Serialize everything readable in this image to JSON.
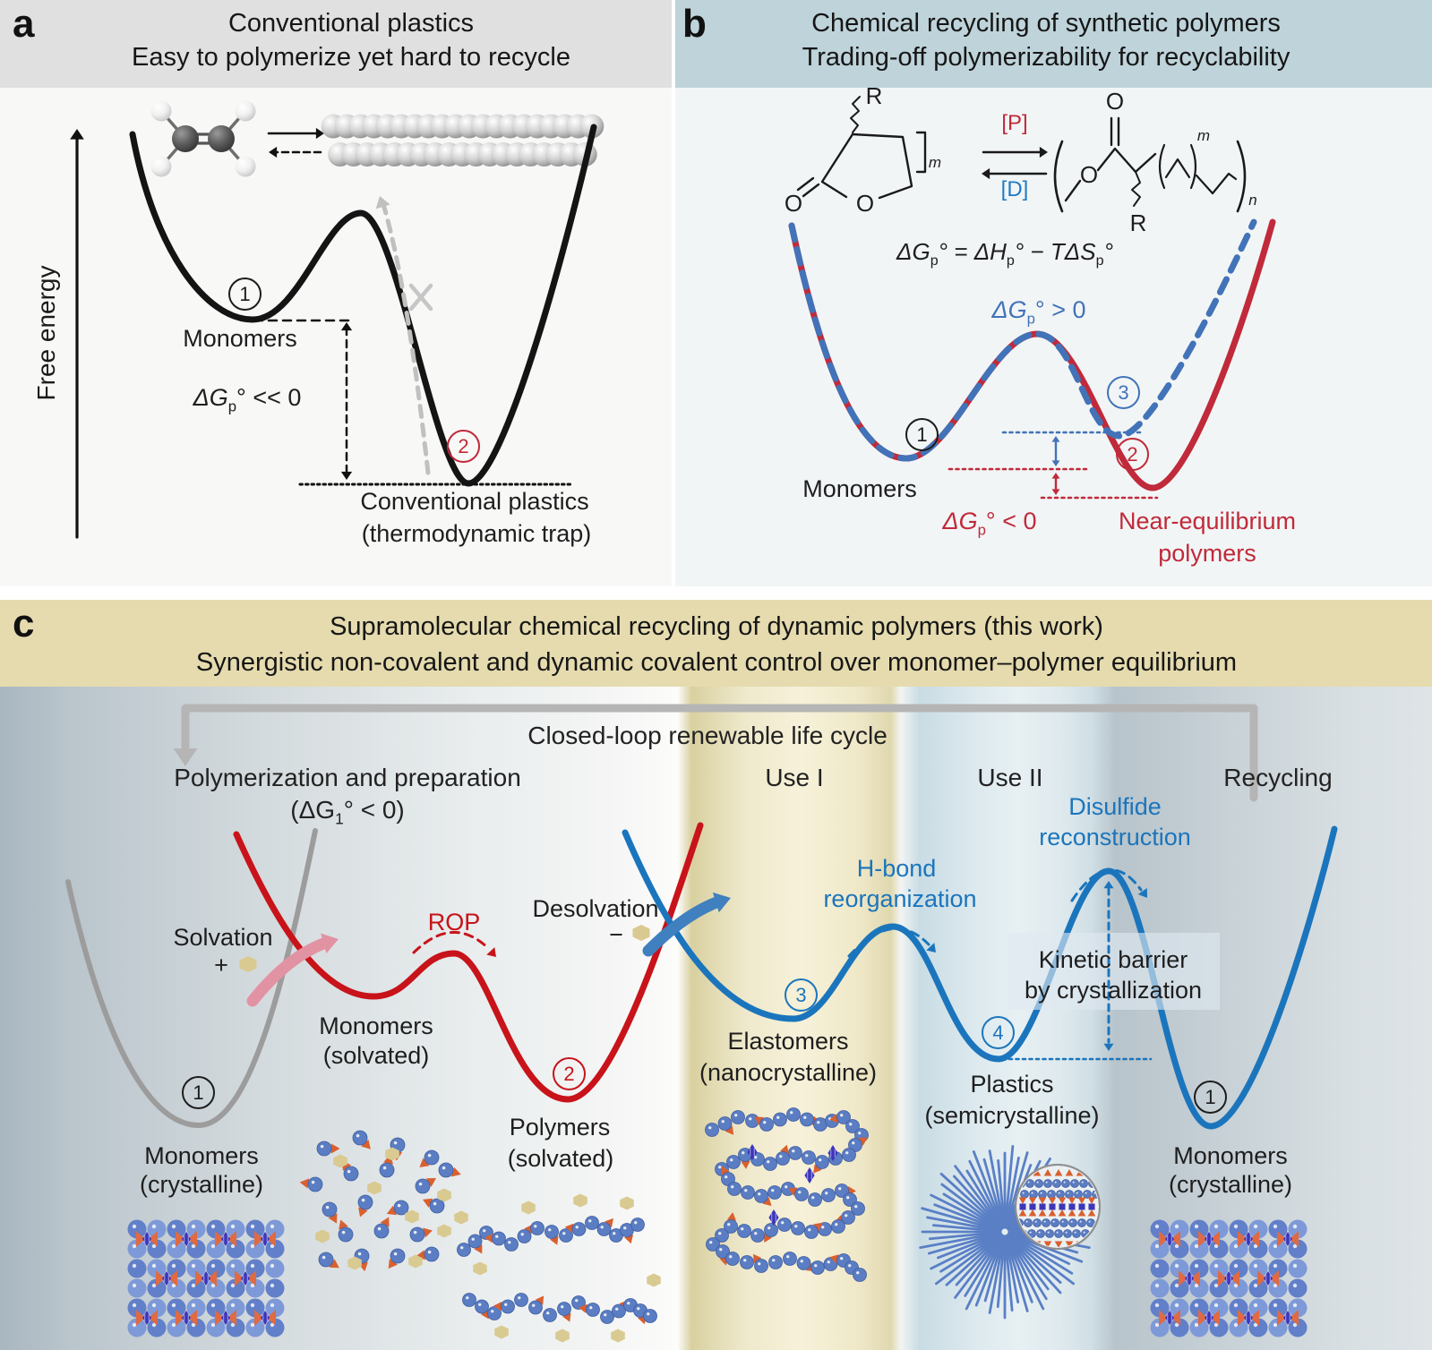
{
  "colors": {
    "black_curve": "#141414",
    "panelb_red": "#c02a3a",
    "panelb_blue": "#4273b8",
    "c_red": "#c8131a",
    "c_blue": "#1b75bc",
    "c_gray": "#9c9c9c",
    "loop_gray": "#b5b5b5",
    "ghost_gray": "#c0c0c0",
    "pink_arrow": "#e293a3",
    "desolv_blue": "#4080bf",
    "hexagon_tan": "#d9ca92",
    "triangle_orange": "#d9602f",
    "bowtie_orange": "#e06a41",
    "bead_blue": "#5b7dc3",
    "bead_edge": "#3f5da0",
    "lattice_blue_1": "#7e99d8",
    "lattice_blue_2": "#627fc9",
    "diamond_purple": "#3d35b8",
    "diamond_stripe": "#9b99e8",
    "ray_blue": "#5a7fc5",
    "magnifier_fill": "#ebf0f2",
    "magnifier_edge": "#8f8f8f",
    "kinetic_box": "rgba(222,233,240,0.62)"
  },
  "panel_a": {
    "tag": "a",
    "title_line1": "Conventional plastics",
    "title_line2": "Easy to polymerize yet hard to recycle",
    "y_axis": "Free energy",
    "num1": "1",
    "num2": "2",
    "monomers": "Monomers",
    "dg": {
      "pre": "ΔG",
      "sub": "p",
      "post": "° << 0"
    },
    "trap_line1": "Conventional plastics",
    "trap_line2": "(thermodynamic trap)"
  },
  "panel_b": {
    "tag": "b",
    "title_line1": "Chemical recycling of synthetic polymers",
    "title_line2": "Trading-off polymerizability for recyclability",
    "chem": {
      "r1": "R",
      "o_carbonyl": "O",
      "o_ring": "O",
      "m1": "m",
      "p": "[P]",
      "d": "[D]",
      "o_top": "O",
      "o_ester": "O",
      "r2": "R",
      "m2": "m",
      "n": "n"
    },
    "eq": {
      "t1": "ΔG",
      "s1": "p",
      "t2": "° = ΔH",
      "s2": "p",
      "t3": "° − TΔS",
      "s3": "p",
      "t4": "°"
    },
    "dg_pos": {
      "pre": "ΔG",
      "sub": "p",
      "post": "° > 0"
    },
    "dg_neg": {
      "pre": "ΔG",
      "sub": "p",
      "post": "° < 0"
    },
    "monomers": "Monomers",
    "near_eq_line1": "Near-equilibrium",
    "near_eq_line2": "polymers",
    "num1": "1",
    "num2": "2",
    "num3": "3"
  },
  "panel_c": {
    "tag": "c",
    "title_line1": "Supramolecular chemical recycling of dynamic polymers (this work)",
    "title_line2": "Synergistic non-covalent and dynamic covalent control over monomer–polymer equilibrium",
    "loop_label": "Closed-loop renewable life cycle",
    "stages": {
      "s1": "Polymerization and preparation",
      "s1b": {
        "pre": "(ΔG",
        "sub": "1",
        "post": "° < 0)"
      },
      "s2": "Use I",
      "s3": "Use II",
      "s4": "Recycling"
    },
    "annotations": {
      "solvation": "Solvation",
      "solvation_sign": "+",
      "rop": "ROP",
      "desolvation": "Desolvation",
      "desolvation_sign": "−",
      "hbond_line1": "H-bond",
      "hbond_line2": "reorganization",
      "disulfide_line1": "Disulfide",
      "disulfide_line2": "reconstruction",
      "kinetic_line1": "Kinetic barrier",
      "kinetic_line2": "by crystallization"
    },
    "states": {
      "m_cryst_l1": "Monomers",
      "m_cryst_l2": "(crystalline)",
      "m_solv_l1": "Monomers",
      "m_solv_l2": "(solvated)",
      "p_solv_l1": "Polymers",
      "p_solv_l2": "(solvated)",
      "elast_l1": "Elastomers",
      "elast_l2": "(nanocrystalline)",
      "plast_l1": "Plastics",
      "plast_l2": "(semicrystalline)",
      "m_cryst2_l1": "Monomers",
      "m_cryst2_l2": "(crystalline)"
    },
    "num1": "1",
    "num2": "2",
    "num3": "3",
    "num4": "4",
    "num5": "1"
  }
}
